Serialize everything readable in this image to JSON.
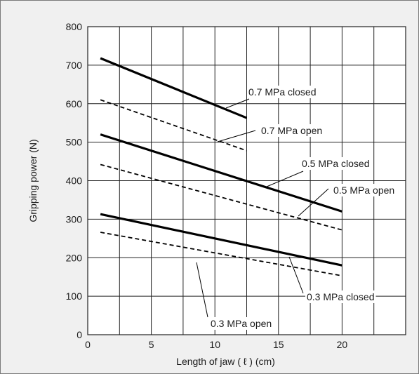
{
  "chart_data": {
    "type": "line",
    "xlabel": "Length of jaw ( ℓ ) (cm)",
    "ylabel": "Gripping power (N)",
    "xlim": [
      0,
      25
    ],
    "ylim": [
      0,
      800
    ],
    "xticks": [
      0,
      5,
      10,
      15,
      20
    ],
    "yticks": [
      0,
      100,
      200,
      300,
      400,
      500,
      600,
      700,
      800
    ],
    "grid": true,
    "series": [
      {
        "name": "0.7 MPa closed",
        "style": "solid",
        "x": [
          1,
          12.5
        ],
        "y": [
          718,
          563
        ]
      },
      {
        "name": "0.7 MPa open",
        "style": "dashed",
        "x": [
          1,
          12.5
        ],
        "y": [
          610,
          478
        ]
      },
      {
        "name": "0.5 MPa closed",
        "style": "solid",
        "x": [
          1,
          20
        ],
        "y": [
          520,
          320
        ]
      },
      {
        "name": "0.5 MPa open",
        "style": "dashed",
        "x": [
          1,
          20
        ],
        "y": [
          442,
          272
        ]
      },
      {
        "name": "0.3 MPa closed",
        "style": "solid",
        "x": [
          1,
          20
        ],
        "y": [
          313,
          180
        ]
      },
      {
        "name": "0.3 MPa open",
        "style": "dashed",
        "x": [
          1,
          20
        ],
        "y": [
          266,
          153
        ]
      }
    ],
    "colors": {
      "line": "#000000",
      "grid": "#222222",
      "background": "#ffffff",
      "frame": "#f0f0f0"
    }
  }
}
